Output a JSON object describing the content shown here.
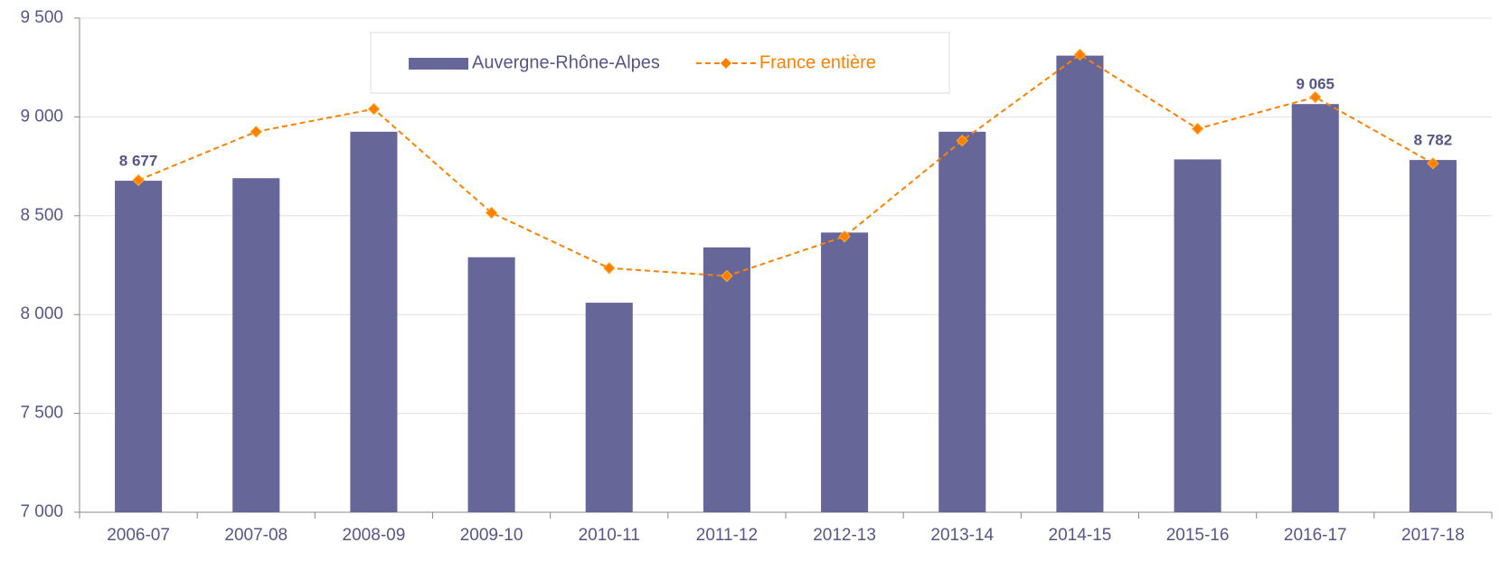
{
  "chart_data": {
    "type": "bar-line",
    "categories": [
      "2006-07",
      "2007-08",
      "2008-09",
      "2009-10",
      "2010-11",
      "2011-12",
      "2012-13",
      "2013-14",
      "2014-15",
      "2015-16",
      "2016-17",
      "2017-18"
    ],
    "series": [
      {
        "name": "Auvergne-Rhône-Alpes",
        "type": "bar",
        "color": "#666699",
        "values": [
          8677,
          8690,
          8925,
          8290,
          8060,
          8340,
          8415,
          8925,
          9310,
          8785,
          9065,
          8782
        ],
        "value_labels": [
          "8 677",
          null,
          null,
          null,
          null,
          null,
          null,
          null,
          null,
          null,
          "9 065",
          "8 782"
        ]
      },
      {
        "name": "France entière",
        "type": "line",
        "color": "#ff8000",
        "values": [
          8680,
          8925,
          9040,
          8515,
          8235,
          8195,
          8395,
          8880,
          9315,
          8940,
          9100,
          8765
        ]
      }
    ],
    "ylim": [
      7000,
      9500
    ],
    "yticks": [
      {
        "value": 7000,
        "label": "7 000"
      },
      {
        "value": 7500,
        "label": "7 500"
      },
      {
        "value": 8000,
        "label": "8 000"
      },
      {
        "value": 8500,
        "label": "8 500"
      },
      {
        "value": 9000,
        "label": "9 000"
      },
      {
        "value": 9500,
        "label": "9 500"
      }
    ],
    "grid": true,
    "legend": "top"
  }
}
